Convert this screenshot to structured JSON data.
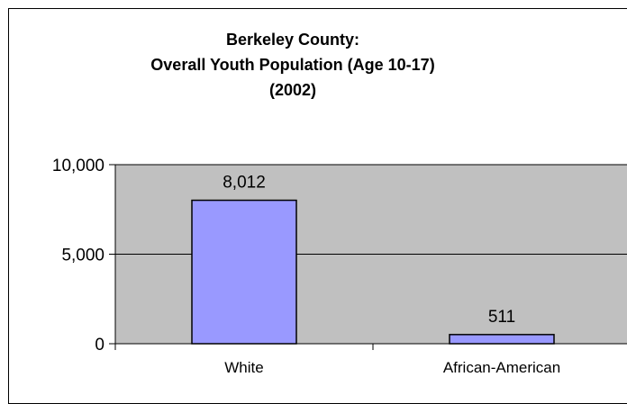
{
  "chart_data": {
    "type": "bar",
    "title_lines": [
      "Berkeley County:",
      "Overall Youth Population (Age 10-17)",
      "(2002)"
    ],
    "categories": [
      "White",
      "African-American"
    ],
    "values": [
      8012,
      511
    ],
    "data_labels": [
      "8,012",
      "511"
    ],
    "ylim": [
      0,
      10000
    ],
    "yticks": [
      0,
      5000,
      10000
    ],
    "ytick_labels": [
      "0",
      "5,000",
      "10,000"
    ],
    "xlabel": "",
    "ylabel": "",
    "grid": true,
    "legend": "none",
    "colors": {
      "bar_fill": "#9999ff",
      "bar_stroke": "#000000",
      "plot_background": "#c0c0c0",
      "gridline": "#000000"
    }
  }
}
